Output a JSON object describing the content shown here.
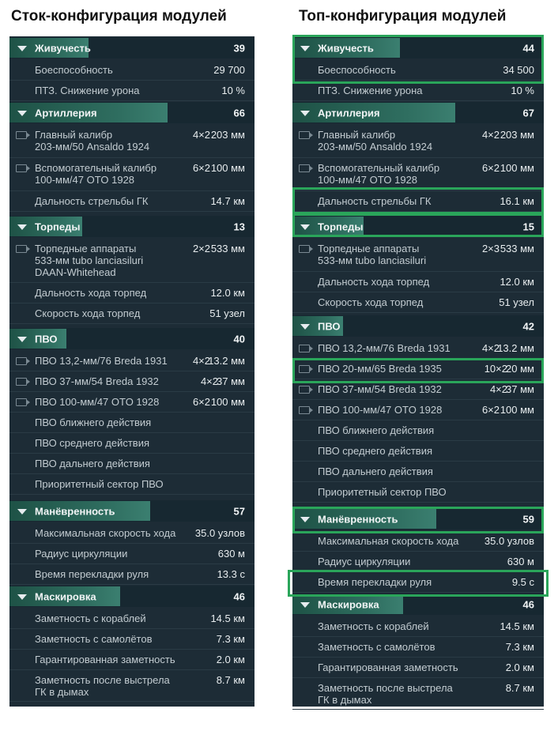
{
  "left": {
    "title": "Сток-конфигурация модулей",
    "sections": [
      {
        "name": "Живучесть",
        "value": "39",
        "items": [
          {
            "label": "Боеспособность",
            "value": "29 700"
          },
          {
            "label": "ПТЗ. Снижение урона",
            "value": "10 %"
          }
        ]
      },
      {
        "name": "Артиллерия",
        "value": "66",
        "items": [
          {
            "label": "Главный калибр\n203-мм/50 Ansaldo 1924",
            "count": "4×2",
            "value": "203 мм",
            "icon": "camera-icon"
          },
          {
            "label": "Вспомогательный калибр\n100-мм/47 OTO 1928",
            "count": "6×2",
            "value": "100 мм",
            "icon": "camera-icon"
          },
          {
            "label": "Дальность стрельбы ГК",
            "value": "14.7 км"
          }
        ]
      },
      {
        "name": "Торпеды",
        "value": "13",
        "items": [
          {
            "label": "Торпедные аппараты\n533-мм tubo lanciasiluri\nDAAN-Whitehead",
            "count": "2×2",
            "value": "533 мм",
            "icon": "camera-icon"
          },
          {
            "label": "Дальность хода торпед",
            "value": "12.0 км"
          },
          {
            "label": "Скорость хода торпед",
            "value": "51 узел"
          }
        ]
      },
      {
        "name": "ПВО",
        "value": "40",
        "items": [
          {
            "label": "ПВО 13,2-мм/76 Breda 1931",
            "count": "4×2",
            "value": "13.2 мм",
            "icon": "camera-icon"
          },
          {
            "label": "ПВО 37-мм/54 Breda 1932",
            "count": "4×2",
            "value": "37 мм",
            "icon": "camera-icon"
          },
          {
            "label": "ПВО 100-мм/47 OTO 1928",
            "count": "6×2",
            "value": "100 мм",
            "icon": "camera-icon"
          },
          {
            "label": "ПВО ближнего действия"
          },
          {
            "label": "ПВО среднего действия"
          },
          {
            "label": "ПВО дальнего действия"
          },
          {
            "label": "Приоритетный сектор ПВО"
          }
        ]
      },
      {
        "name": "Манёвренность",
        "value": "57",
        "items": [
          {
            "label": "Максимальная скорость хода",
            "value": "35.0 узлов"
          },
          {
            "label": "Радиус циркуляции",
            "value": "630 м"
          },
          {
            "label": "Время перекладки руля",
            "value": "13.3 с"
          }
        ]
      },
      {
        "name": "Маскировка",
        "value": "46",
        "items": [
          {
            "label": "Заметность с кораблей",
            "value": "14.5 км"
          },
          {
            "label": "Заметность с самолётов",
            "value": "7.3 км"
          },
          {
            "label": "Гарантированная заметность",
            "value": "2.0 км"
          },
          {
            "label": "Заметность после выстрела\nГК в дымах",
            "value": "8.7 км"
          }
        ]
      }
    ]
  },
  "right": {
    "title": "Топ-конфигурация модулей",
    "sections": [
      {
        "name": "Живучесть",
        "value": "44",
        "items": [
          {
            "label": "Боеспособность",
            "value": "34 500"
          },
          {
            "label": "ПТЗ. Снижение урона",
            "value": "10 %"
          }
        ]
      },
      {
        "name": "Артиллерия",
        "value": "67",
        "items": [
          {
            "label": "Главный калибр\n203-мм/50 Ansaldo 1924",
            "count": "4×2",
            "value": "203 мм",
            "icon": "camera-icon"
          },
          {
            "label": "Вспомогательный калибр\n100-мм/47 OTO 1928",
            "count": "6×2",
            "value": "100 мм",
            "icon": "camera-icon"
          },
          {
            "label": "Дальность стрельбы ГК",
            "value": "16.1 км"
          }
        ]
      },
      {
        "name": "Торпеды",
        "value": "15",
        "items": [
          {
            "label": "Торпедные аппараты\n533-мм tubo lanciasiluri",
            "count": "2×3",
            "value": "533 мм",
            "icon": "camera-icon"
          },
          {
            "label": "Дальность хода торпед",
            "value": "12.0 км"
          },
          {
            "label": "Скорость хода торпед",
            "value": "51 узел"
          }
        ]
      },
      {
        "name": "ПВО",
        "value": "42",
        "items": [
          {
            "label": "ПВО 13,2-мм/76 Breda 1931",
            "count": "4×2",
            "value": "13.2 мм",
            "icon": "camera-icon"
          },
          {
            "label": "ПВО 20-мм/65 Breda 1935",
            "count": "10×2",
            "value": "20 мм",
            "icon": "camera-icon"
          },
          {
            "label": "ПВО 37-мм/54 Breda 1932",
            "count": "4×2",
            "value": "37 мм",
            "icon": "camera-icon"
          },
          {
            "label": "ПВО 100-мм/47 OTO 1928",
            "count": "6×2",
            "value": "100 мм",
            "icon": "camera-icon"
          },
          {
            "label": "ПВО ближнего действия"
          },
          {
            "label": "ПВО среднего действия"
          },
          {
            "label": "ПВО дальнего действия"
          },
          {
            "label": "Приоритетный сектор ПВО"
          }
        ]
      },
      {
        "name": "Манёвренность",
        "value": "59",
        "items": [
          {
            "label": "Максимальная скорость хода",
            "value": "35.0 узлов"
          },
          {
            "label": "Радиус циркуляции",
            "value": "630 м"
          },
          {
            "label": "Время перекладки руля",
            "value": "9.5 с"
          }
        ]
      },
      {
        "name": "Маскировка",
        "value": "46",
        "items": [
          {
            "label": "Заметность с кораблей",
            "value": "14.5 км"
          },
          {
            "label": "Заметность с самолётов",
            "value": "7.3 км"
          },
          {
            "label": "Гарантированная заметность",
            "value": "2.0 км"
          },
          {
            "label": "Заметность после выстрела\nГК в дымах",
            "value": "8.7 км"
          }
        ]
      }
    ]
  }
}
